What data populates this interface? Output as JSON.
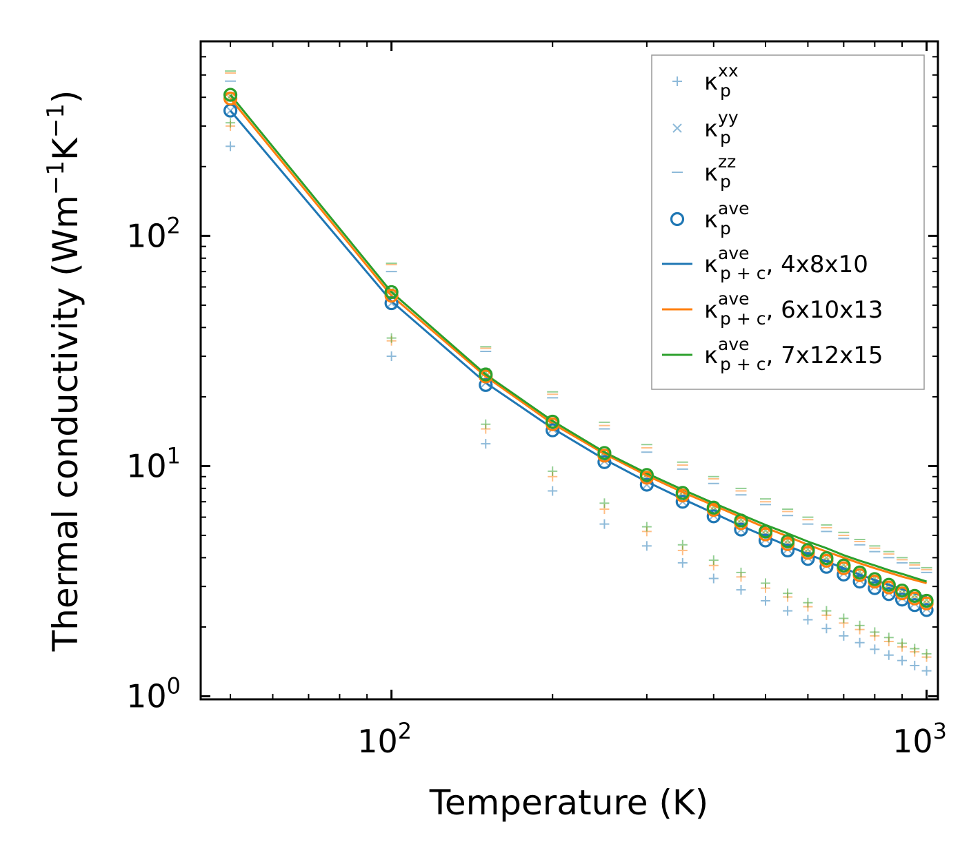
{
  "chart_data": {
    "type": "scatter",
    "xscale": "log",
    "yscale": "log",
    "xlabel": "Temperature (K)",
    "ylabel": "Thermal conductivity (Wm",
    "ylabel_sup1": "−1",
    "ylabel_mid": "K",
    "ylabel_sup2": "−1",
    "ylabel_end": ")",
    "xlim": [
      44,
      1050
    ],
    "ylim": [
      0.97,
      700
    ],
    "xticks": [
      {
        "value": 100,
        "base": "10",
        "exp": "2"
      },
      {
        "value": 1000,
        "base": "10",
        "exp": "3"
      }
    ],
    "yticks": [
      {
        "value": 1,
        "base": "10",
        "exp": "0"
      },
      {
        "value": 10,
        "base": "10",
        "exp": "1"
      },
      {
        "value": 100,
        "base": "10",
        "exp": "2"
      }
    ],
    "x": [
      50,
      100,
      150,
      200,
      250,
      300,
      350,
      400,
      450,
      500,
      550,
      600,
      650,
      700,
      750,
      800,
      850,
      900,
      950,
      1000
    ],
    "colors": {
      "c1": "#1f77b4",
      "c2": "#ff7f0e",
      "c3": "#2ca02c"
    },
    "groups": [
      {
        "name": "4x8x10",
        "color": "#1f77b4",
        "kxx": [
          245,
          30,
          12.5,
          7.8,
          5.6,
          4.5,
          3.8,
          3.25,
          2.9,
          2.6,
          2.35,
          2.15,
          1.97,
          1.83,
          1.71,
          1.6,
          1.51,
          1.43,
          1.36,
          1.29
        ],
        "kyy": [
          350,
          51,
          23,
          14.5,
          10.5,
          8.3,
          7.0,
          6.1,
          5.3,
          4.8,
          4.35,
          4.0,
          3.7,
          3.42,
          3.2,
          3.0,
          2.82,
          2.67,
          2.53,
          2.4
        ],
        "kzz": [
          470,
          70,
          31.5,
          19.8,
          14.5,
          11.5,
          9.7,
          8.4,
          7.5,
          6.8,
          6.1,
          5.6,
          5.2,
          4.85,
          4.55,
          4.25,
          4.0,
          3.8,
          3.6,
          3.45
        ],
        "kave": [
          350,
          51,
          22.5,
          14.3,
          10.4,
          8.3,
          7.0,
          6.05,
          5.3,
          4.75,
          4.3,
          3.95,
          3.65,
          3.38,
          3.15,
          2.95,
          2.78,
          2.63,
          2.49,
          2.37
        ],
        "kpc": [
          350,
          52,
          23.0,
          14.6,
          10.7,
          8.55,
          7.2,
          6.25,
          5.5,
          4.95,
          4.5,
          4.15,
          3.85,
          3.6,
          3.38,
          3.2,
          3.05,
          2.92,
          2.8,
          2.7
        ]
      },
      {
        "name": "6x10x13",
        "color": "#ff7f0e",
        "kxx": [
          300,
          35,
          14.5,
          9.0,
          6.5,
          5.2,
          4.3,
          3.7,
          3.3,
          2.95,
          2.7,
          2.45,
          2.25,
          2.08,
          1.95,
          1.83,
          1.73,
          1.64,
          1.56,
          1.48
        ],
        "kyy": [
          395,
          55,
          24.5,
          15.3,
          11.1,
          8.9,
          7.45,
          6.45,
          5.65,
          5.05,
          4.6,
          4.2,
          3.88,
          3.6,
          3.35,
          3.15,
          2.97,
          2.8,
          2.66,
          2.53
        ],
        "kzz": [
          510,
          75,
          32.5,
          20.5,
          15.0,
          12.0,
          10.1,
          8.8,
          7.8,
          7.0,
          6.35,
          5.85,
          5.4,
          5.0,
          4.7,
          4.4,
          4.15,
          3.92,
          3.72,
          3.55
        ],
        "kave": [
          395,
          55,
          24.5,
          15.2,
          11.1,
          8.9,
          7.45,
          6.45,
          5.65,
          5.05,
          4.58,
          4.2,
          3.88,
          3.6,
          3.36,
          3.15,
          2.97,
          2.8,
          2.66,
          2.53
        ],
        "kpc": [
          395,
          55,
          24.5,
          15.3,
          11.3,
          9.1,
          7.7,
          6.75,
          6.0,
          5.4,
          4.95,
          4.55,
          4.25,
          4.0,
          3.78,
          3.6,
          3.45,
          3.31,
          3.2,
          3.1
        ]
      },
      {
        "name": "7x12x15",
        "color": "#2ca02c",
        "kxx": [
          310,
          36,
          15.2,
          9.5,
          6.9,
          5.45,
          4.55,
          3.9,
          3.45,
          3.1,
          2.8,
          2.55,
          2.35,
          2.18,
          2.03,
          1.9,
          1.8,
          1.7,
          1.61,
          1.53
        ],
        "kyy": [
          405,
          58,
          25.5,
          15.8,
          11.5,
          9.2,
          7.7,
          6.65,
          5.85,
          5.25,
          4.75,
          4.35,
          4.0,
          3.72,
          3.47,
          3.25,
          3.07,
          2.9,
          2.75,
          2.62
        ],
        "kzz": [
          520,
          76,
          33.0,
          21.0,
          15.5,
          12.4,
          10.4,
          9.0,
          8.0,
          7.2,
          6.5,
          6.0,
          5.55,
          5.15,
          4.8,
          4.5,
          4.25,
          4.0,
          3.8,
          3.62
        ],
        "kave": [
          410,
          57,
          25.0,
          15.6,
          11.4,
          9.15,
          7.65,
          6.6,
          5.8,
          5.2,
          4.72,
          4.32,
          3.98,
          3.7,
          3.45,
          3.23,
          3.05,
          2.88,
          2.73,
          2.6
        ],
        "kpc": [
          410,
          57,
          25.0,
          15.7,
          11.5,
          9.3,
          7.9,
          6.9,
          6.15,
          5.55,
          5.1,
          4.7,
          4.4,
          4.1,
          3.88,
          3.7,
          3.53,
          3.4,
          3.27,
          3.15
        ]
      }
    ],
    "legend": {
      "position": "top-right",
      "entries": [
        {
          "marker": "plus",
          "color": "#1f77b4",
          "base": "κ",
          "sup": "xx",
          "sub": "p",
          "suffix": ""
        },
        {
          "marker": "x",
          "color": "#1f77b4",
          "base": "κ",
          "sup": "yy",
          "sub": "p",
          "suffix": ""
        },
        {
          "marker": "dash",
          "color": "#1f77b4",
          "base": "κ",
          "sup": "zz",
          "sub": "p",
          "suffix": ""
        },
        {
          "marker": "circle",
          "color": "#1f77b4",
          "base": "κ",
          "sup": "ave",
          "sub": "p",
          "suffix": ""
        },
        {
          "marker": "line",
          "color": "#1f77b4",
          "base": "κ",
          "sup": "ave",
          "sub": "p + c",
          "suffix": ", 4x8x10"
        },
        {
          "marker": "line",
          "color": "#ff7f0e",
          "base": "κ",
          "sup": "ave",
          "sub": "p + c",
          "suffix": ", 6x10x13"
        },
        {
          "marker": "line",
          "color": "#2ca02c",
          "base": "κ",
          "sup": "ave",
          "sub": "p + c",
          "suffix": ", 7x12x15"
        }
      ]
    }
  }
}
